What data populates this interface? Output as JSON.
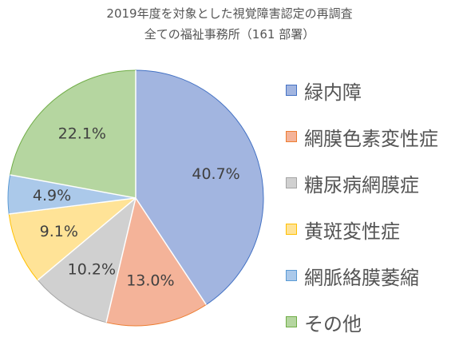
{
  "chart_data": {
    "type": "pie",
    "title": "2019年度を対象とした視覚障害認定の再調査",
    "subtitle": "全ての福祉事務所（161 部署）",
    "legend_position": "right",
    "start_angle_deg": 0,
    "direction": "clockwise",
    "slices": [
      {
        "name": "緑内障",
        "value": 40.7,
        "label": "40.7%",
        "fill": "#A2B5E0",
        "stroke": "#4472C4"
      },
      {
        "name": "網膜色素変性症",
        "value": 13.0,
        "label": "13.0%",
        "fill": "#F4B399",
        "stroke": "#ED7D31"
      },
      {
        "name": "糖尿病網膜症",
        "value": 10.2,
        "label": "10.2%",
        "fill": "#D0D0D0",
        "stroke": "#A5A5A5"
      },
      {
        "name": "黄斑変性症",
        "value": 9.1,
        "label": "9.1%",
        "fill": "#FFE397",
        "stroke": "#FFC000"
      },
      {
        "name": "網脈絡膜萎縮",
        "value": 4.9,
        "label": "4.9%",
        "fill": "#ABC9EA",
        "stroke": "#5B9BD5"
      },
      {
        "name": "その他",
        "value": 22.1,
        "label": "22.1%",
        "fill": "#B5D6A0",
        "stroke": "#70AD47"
      }
    ]
  }
}
